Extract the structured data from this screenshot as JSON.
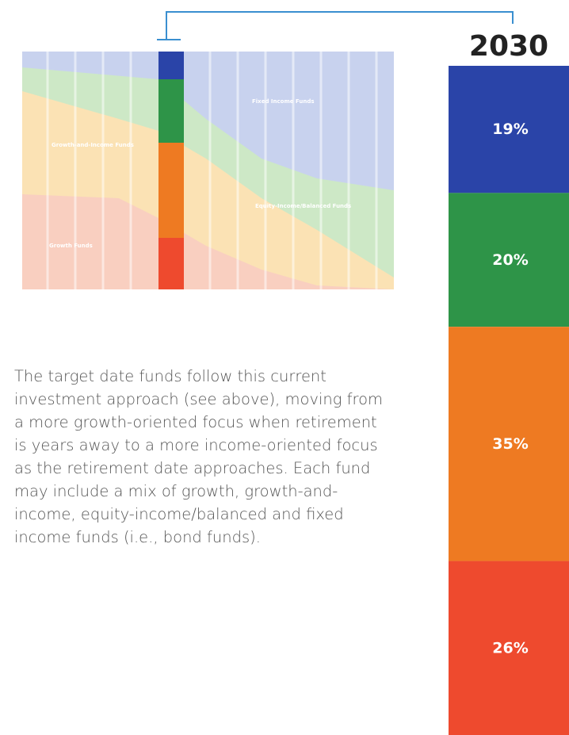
{
  "glide_path": {
    "labels": [
      "Fixed Income Funds",
      "Growth-and-Income Funds",
      "Equity-Income/Balanced Funds",
      "Growth Funds"
    ]
  },
  "paragraph": [
    "The target date funds follow this current",
    "investment approach (see above), moving from",
    "a more growth-oriented focus when retirement",
    "is years away to a more income-oriented focus",
    "as the retirement date approaches. Each fund",
    "may include a mix of growth, growth-and-",
    "income, equity-income/balanced and fixed",
    "income funds (i.e., bond funds)."
  ],
  "chart_data": {
    "type": "stacked_bar",
    "title": "2030",
    "values": [
      19,
      20,
      35,
      26
    ],
    "value_labels": [
      "19%",
      "20%",
      "35%",
      "26%"
    ],
    "colors": [
      "#2a44a8",
      "#2e9448",
      "#ee7a22",
      "#ee4a2e"
    ]
  }
}
